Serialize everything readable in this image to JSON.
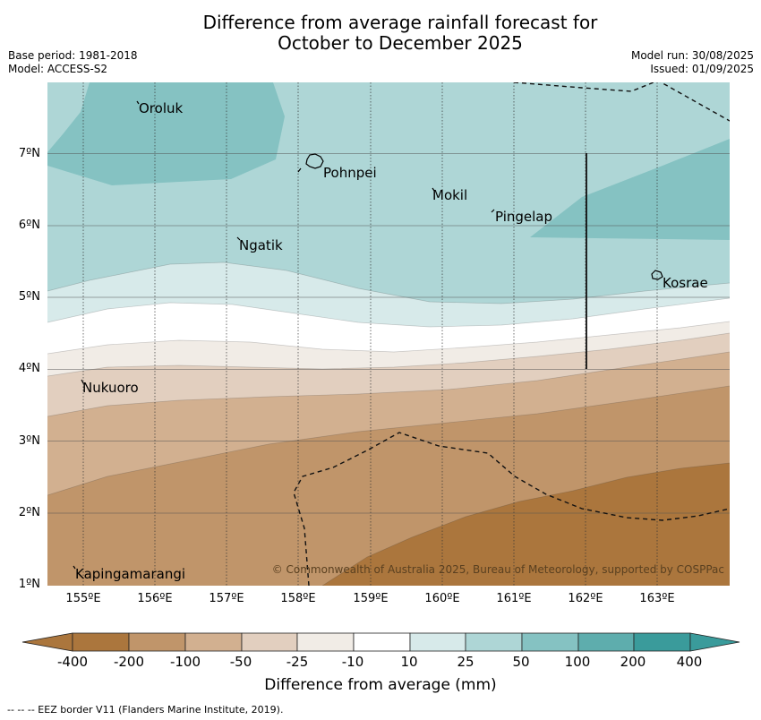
{
  "title": {
    "line1": "Difference from average rainfall forecast for",
    "line2": "October to December 2025"
  },
  "meta": {
    "base_period": "Base period: 1981-2018",
    "model": "Model: ACCESS-S2",
    "model_run": "Model run: 30/08/2025",
    "issued": "Issued: 01/09/2025"
  },
  "map": {
    "lat_ticks": [
      "7ºN",
      "6ºN",
      "5ºN",
      "4ºN",
      "3ºN",
      "2ºN",
      "1ºN"
    ],
    "lon_ticks": [
      "155ºE",
      "156ºE",
      "157ºE",
      "158ºE",
      "159ºE",
      "160ºE",
      "161ºE",
      "162ºE",
      "163ºE"
    ],
    "places": [
      {
        "name": "Oroluk"
      },
      {
        "name": "Pohnpei"
      },
      {
        "name": "Mokil"
      },
      {
        "name": "Pingelap"
      },
      {
        "name": "Ngatik"
      },
      {
        "name": "Kosrae"
      },
      {
        "name": "Nukuoro"
      },
      {
        "name": "Kapingamarangi"
      }
    ],
    "copyright": "© Commonwealth of Australia 2025, Bureau of Meteorology, supported by COSPPac",
    "colors": {
      "very_wet": "#3a9b9b",
      "wet_200": "#5eadad",
      "wet_100": "#85c2c2",
      "wet_50": "#aed6d6",
      "wet_25": "#d7eaea",
      "neutral": "#ffffff",
      "dry_25": "#f1ece6",
      "dry_50": "#e2cfbf",
      "dry_100": "#d2b090",
      "dry_200": "#c0956a",
      "very_dry": "#ab763d"
    }
  },
  "colorbar": {
    "labels": [
      "-400",
      "-200",
      "-100",
      "-50",
      "-25",
      "-10",
      "10",
      "25",
      "50",
      "100",
      "200",
      "400"
    ],
    "colors": [
      "#ab763d",
      "#c0956a",
      "#d2b090",
      "#e2cfbf",
      "#f1ece6",
      "#ffffff",
      "#d7eaea",
      "#aed6d6",
      "#85c2c2",
      "#5eadad",
      "#3a9b9b"
    ],
    "title": "Difference from average (mm)"
  },
  "footnote": "--  --  -- EEZ border V11 (Flanders Marine Institute, 2019)."
}
